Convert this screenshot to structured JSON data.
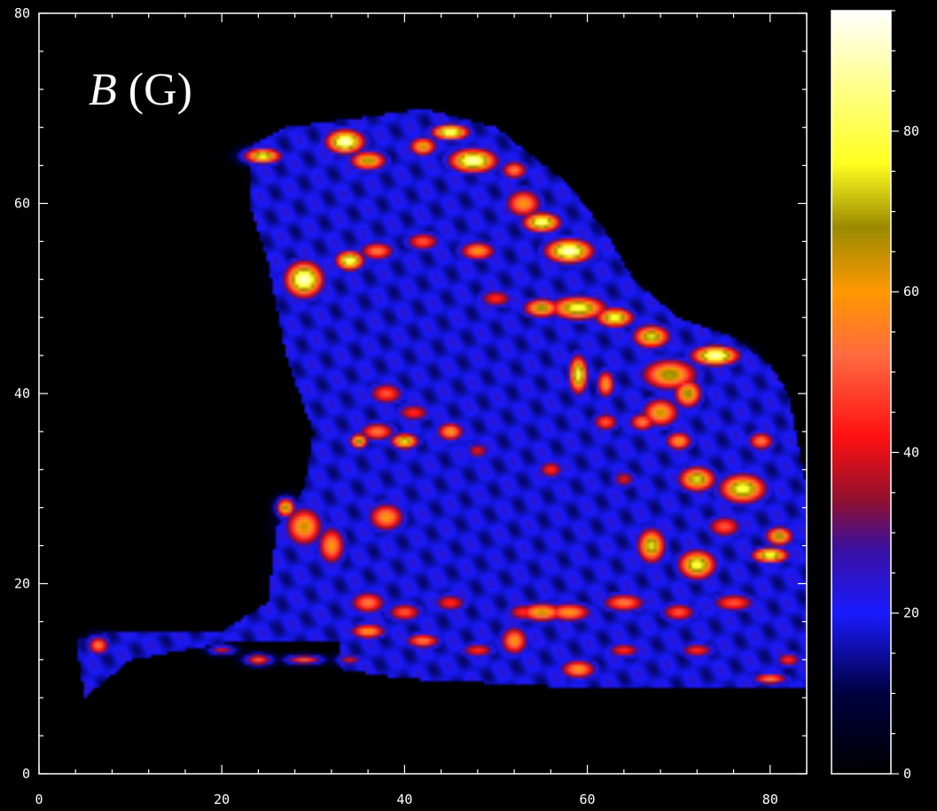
{
  "chart_data": {
    "type": "heatmap",
    "title": "B (G)",
    "title_parts": {
      "symbol": "B",
      "unit": " (G)"
    },
    "x": {
      "min": 0,
      "max": 84,
      "ticks": [
        0,
        20,
        40,
        60,
        80
      ],
      "tick_labels": [
        "0",
        "20",
        "40",
        "60",
        "80"
      ]
    },
    "y": {
      "min": 0,
      "max": 80,
      "ticks": [
        0,
        20,
        40,
        60,
        80
      ],
      "tick_labels": [
        "0",
        "20",
        "40",
        "60",
        "80"
      ]
    },
    "colorbar": {
      "min": 0,
      "max": 95,
      "ticks": [
        0,
        20,
        40,
        60,
        80
      ],
      "tick_labels": [
        "0",
        "20",
        "40",
        "60",
        "80"
      ],
      "stops": [
        {
          "v": 0,
          "color": "#000000"
        },
        {
          "v": 10,
          "color": "#000040"
        },
        {
          "v": 20,
          "color": "#1a1aff"
        },
        {
          "v": 28,
          "color": "#3a10a0"
        },
        {
          "v": 34,
          "color": "#901030"
        },
        {
          "v": 42,
          "color": "#ff1010"
        },
        {
          "v": 52,
          "color": "#ff6a40"
        },
        {
          "v": 60,
          "color": "#ff9800"
        },
        {
          "v": 68,
          "color": "#9a8a00"
        },
        {
          "v": 76,
          "color": "#ffff20"
        },
        {
          "v": 86,
          "color": "#ffff90"
        },
        {
          "v": 95,
          "color": "#ffffff"
        }
      ]
    },
    "region": {
      "description_values": "approximate field-strength map, values in gauss",
      "background": 0,
      "base_field": 18,
      "outline": [
        [
          23,
          66
        ],
        [
          27,
          68
        ],
        [
          35,
          69
        ],
        [
          42,
          70
        ],
        [
          50,
          68
        ],
        [
          58,
          62
        ],
        [
          62,
          57
        ],
        [
          65,
          52
        ],
        [
          70,
          48
        ],
        [
          76,
          46
        ],
        [
          80,
          43
        ],
        [
          82,
          40
        ],
        [
          84,
          30
        ],
        [
          84,
          9
        ],
        [
          60,
          9
        ],
        [
          40,
          10
        ],
        [
          33,
          11
        ],
        [
          33,
          14
        ],
        [
          22,
          14
        ],
        [
          16,
          13
        ],
        [
          10,
          12
        ],
        [
          5,
          8
        ],
        [
          4,
          14
        ],
        [
          8,
          15
        ],
        [
          20,
          15
        ],
        [
          25,
          18
        ],
        [
          26,
          26
        ],
        [
          29,
          30
        ],
        [
          30,
          36
        ],
        [
          27,
          44
        ],
        [
          25,
          54
        ],
        [
          23,
          60
        ]
      ],
      "hotspots": [
        [
          24.5,
          65,
          2,
          0.8,
          78
        ],
        [
          33.5,
          66.5,
          2,
          1.2,
          92
        ],
        [
          36,
          64.5,
          2,
          1,
          70
        ],
        [
          42,
          66,
          1.5,
          1,
          65
        ],
        [
          45,
          67.5,
          2,
          0.8,
          85
        ],
        [
          47.5,
          64.5,
          2.5,
          1.2,
          90
        ],
        [
          52,
          63.5,
          1.5,
          1,
          55
        ],
        [
          53,
          60,
          2,
          1.5,
          60
        ],
        [
          29,
          52,
          2,
          1.8,
          92
        ],
        [
          34,
          54,
          1.5,
          1,
          85
        ],
        [
          37,
          55,
          2,
          1,
          55
        ],
        [
          42,
          56,
          2,
          1,
          50
        ],
        [
          48,
          55,
          2,
          1,
          60
        ],
        [
          50,
          50,
          2,
          1,
          45
        ],
        [
          55,
          58,
          2,
          1,
          85
        ],
        [
          58,
          55,
          2.5,
          1.2,
          92
        ],
        [
          55,
          49,
          2,
          1,
          70
        ],
        [
          59,
          49,
          3,
          1.2,
          80
        ],
        [
          63,
          48,
          2,
          1,
          80
        ],
        [
          67,
          46,
          2,
          1.2,
          75
        ],
        [
          69,
          42,
          3,
          1.6,
          70
        ],
        [
          74,
          44,
          2.5,
          1,
          90
        ],
        [
          68,
          38,
          2,
          1.5,
          65
        ],
        [
          71,
          40,
          1.5,
          1.5,
          70
        ],
        [
          59,
          42,
          1,
          2,
          80
        ],
        [
          62,
          41,
          1,
          1.5,
          60
        ],
        [
          62,
          37,
          1.5,
          1,
          50
        ],
        [
          66,
          37,
          1.5,
          1,
          55
        ],
        [
          70,
          35,
          1.5,
          1,
          60
        ],
        [
          72,
          31,
          2,
          1.3,
          75
        ],
        [
          77,
          30,
          2.5,
          1.5,
          80
        ],
        [
          79,
          35,
          1.5,
          1,
          55
        ],
        [
          38,
          40,
          2,
          1.2,
          50
        ],
        [
          41,
          38,
          2,
          1,
          45
        ],
        [
          37,
          36,
          2,
          1,
          55
        ],
        [
          35,
          35,
          1,
          0.8,
          70
        ],
        [
          40,
          35,
          1.5,
          0.8,
          75
        ],
        [
          45,
          36,
          1.5,
          1,
          60
        ],
        [
          48,
          34,
          1.5,
          1,
          40
        ],
        [
          56,
          32,
          1.5,
          1,
          45
        ],
        [
          64,
          31,
          1.5,
          1,
          40
        ],
        [
          29,
          26,
          2,
          2,
          65
        ],
        [
          32,
          24,
          1.5,
          2,
          60
        ],
        [
          38,
          27,
          2,
          1.5,
          60
        ],
        [
          27,
          28,
          1,
          1,
          70
        ],
        [
          67,
          24,
          1.5,
          1.8,
          75
        ],
        [
          72,
          22,
          2,
          1.5,
          80
        ],
        [
          80,
          23,
          2,
          0.8,
          80
        ],
        [
          81,
          25,
          1.5,
          1,
          70
        ],
        [
          75,
          26,
          2,
          1.2,
          50
        ],
        [
          36,
          18,
          2,
          1.2,
          55
        ],
        [
          40,
          17,
          2,
          1,
          50
        ],
        [
          45,
          18,
          2,
          1,
          45
        ],
        [
          53,
          17,
          2,
          1,
          45
        ],
        [
          55,
          17,
          2.5,
          1,
          65
        ],
        [
          58,
          17,
          2.5,
          1,
          60
        ],
        [
          64,
          18,
          2.5,
          1,
          55
        ],
        [
          70,
          17,
          2,
          1,
          50
        ],
        [
          76,
          18,
          2.5,
          1,
          50
        ],
        [
          36,
          15,
          2,
          0.8,
          60
        ],
        [
          42,
          14,
          2,
          0.8,
          55
        ],
        [
          48,
          13,
          2,
          0.8,
          45
        ],
        [
          52,
          14,
          1.5,
          1.5,
          60
        ],
        [
          59,
          11,
          2,
          1,
          60
        ],
        [
          64,
          13,
          2,
          0.8,
          45
        ],
        [
          72,
          13,
          2,
          0.8,
          45
        ],
        [
          80,
          10,
          2,
          0.6,
          55
        ],
        [
          82,
          12,
          1.5,
          0.8,
          45
        ],
        [
          6.5,
          13.5,
          1.2,
          1,
          55
        ],
        [
          24,
          12,
          1.5,
          0.6,
          50
        ],
        [
          29,
          12,
          2,
          0.5,
          50
        ],
        [
          20,
          13,
          1.5,
          0.5,
          40
        ],
        [
          34,
          12,
          1.5,
          0.6,
          40
        ]
      ]
    }
  }
}
